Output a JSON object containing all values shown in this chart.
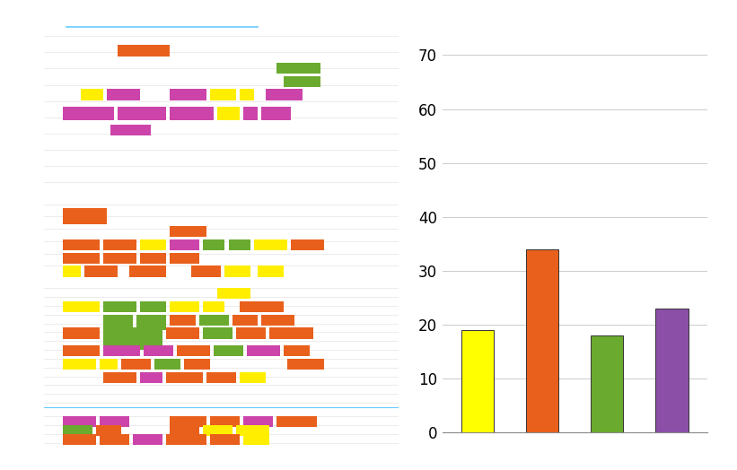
{
  "bar_values": [
    19,
    34,
    18,
    23
  ],
  "bar_colors": [
    "#ffff00",
    "#e8601c",
    "#6aaa2e",
    "#8b4fa8"
  ],
  "ylim": [
    0,
    75
  ],
  "yticks": [
    0,
    10,
    20,
    30,
    40,
    50,
    60,
    70
  ],
  "bar_width": 0.5,
  "bg_color": "#ffffff",
  "grid_color": "#cccccc",
  "orange": "#e8601c",
  "yellow": "#ffee00",
  "green": "#6aaa2e",
  "purple": "#cc44aa",
  "cyan": "#66ccff"
}
